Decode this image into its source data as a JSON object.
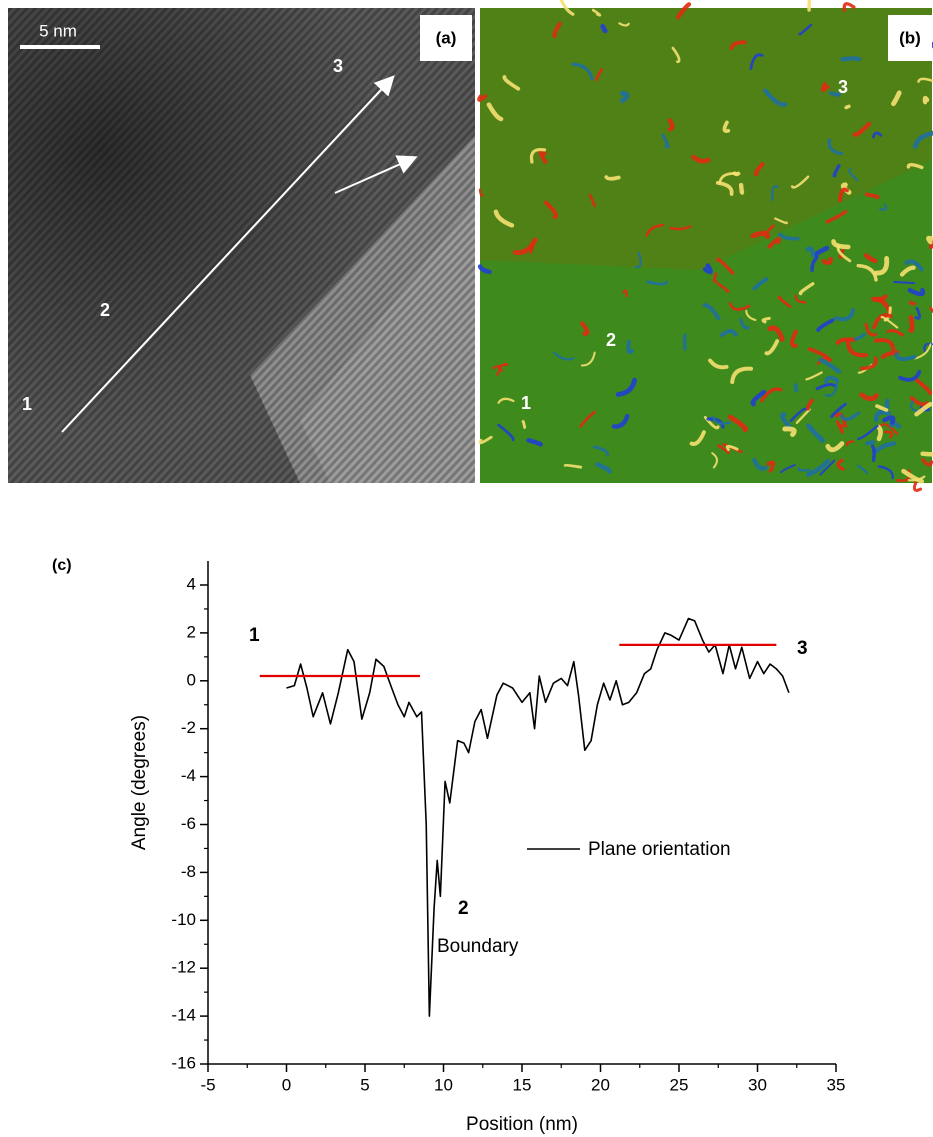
{
  "panels": {
    "a": {
      "label": "(a)",
      "scale_bar": "5 nm",
      "markers": [
        "1",
        "2",
        "3"
      ]
    },
    "b": {
      "label": "(b)",
      "markers": [
        "1",
        "2",
        "3"
      ]
    }
  },
  "chart_data": {
    "type": "line",
    "panel_label": "(c)",
    "x_label": "Position (nm)",
    "y_label": "Angle (degrees)",
    "xlim": [
      -5,
      35
    ],
    "ylim": [
      -16,
      5
    ],
    "xticks": [
      -5,
      0,
      5,
      10,
      15,
      20,
      25,
      30,
      35
    ],
    "yticks": [
      -16,
      -14,
      -12,
      -10,
      -8,
      -6,
      -4,
      -2,
      0,
      2,
      4
    ],
    "x": [
      0,
      0.5,
      0.9,
      1.3,
      1.7,
      2.3,
      2.8,
      3.3,
      3.9,
      4.3,
      4.8,
      5.3,
      5.7,
      6.2,
      6.7,
      7.1,
      7.5,
      7.8,
      8.3,
      8.6,
      8.9,
      9.1,
      9.4,
      9.6,
      9.8,
      10.1,
      10.4,
      10.9,
      11.3,
      11.6,
      12.0,
      12.4,
      12.8,
      13.4,
      13.8,
      14.4,
      15.0,
      15.5,
      15.8,
      16.1,
      16.5,
      17.0,
      17.5,
      17.9,
      18.3,
      18.6,
      19.0,
      19.4,
      19.8,
      20.2,
      20.6,
      21.0,
      21.4,
      21.8,
      22.3,
      22.8,
      23.2,
      23.6,
      24.1,
      24.5,
      25.0,
      25.6,
      26.0,
      26.5,
      26.9,
      27.3,
      27.8,
      28.2,
      28.6,
      29.0,
      29.5,
      30.0,
      30.4,
      30.8,
      31.2,
      31.6,
      32.0
    ],
    "series": [
      {
        "name": "Plane orientation",
        "color": "#000000",
        "values": [
          -0.3,
          -0.2,
          0.7,
          -0.3,
          -1.5,
          -0.5,
          -1.8,
          -0.5,
          1.3,
          0.8,
          -1.6,
          -0.5,
          0.9,
          0.6,
          -0.3,
          -1.0,
          -1.5,
          -0.9,
          -1.5,
          -1.3,
          -6.0,
          -14.0,
          -9.5,
          -7.5,
          -9.0,
          -4.2,
          -5.1,
          -2.5,
          -2.6,
          -3.0,
          -1.7,
          -1.2,
          -2.4,
          -0.6,
          -0.1,
          -0.3,
          -0.9,
          -0.5,
          -2.0,
          0.2,
          -0.9,
          -0.1,
          0.1,
          -0.2,
          0.8,
          -0.6,
          -2.9,
          -2.5,
          -1.0,
          -0.1,
          -0.8,
          0.0,
          -1.0,
          -0.9,
          -0.5,
          0.3,
          0.5,
          1.3,
          2.0,
          1.9,
          1.7,
          2.6,
          2.5,
          1.7,
          1.2,
          1.5,
          0.3,
          1.5,
          0.5,
          1.4,
          0.1,
          0.8,
          0.3,
          0.7,
          0.5,
          0.2,
          -0.5
        ]
      }
    ],
    "reference_lines": [
      {
        "x_start": -1.7,
        "x_end": 8.5,
        "y": 0.2,
        "color": "#e00000"
      },
      {
        "x_start": 21.2,
        "x_end": 31.2,
        "y": 1.5,
        "color": "#e00000"
      }
    ],
    "annotations": [
      "1",
      "2",
      "3",
      "Boundary"
    ]
  }
}
